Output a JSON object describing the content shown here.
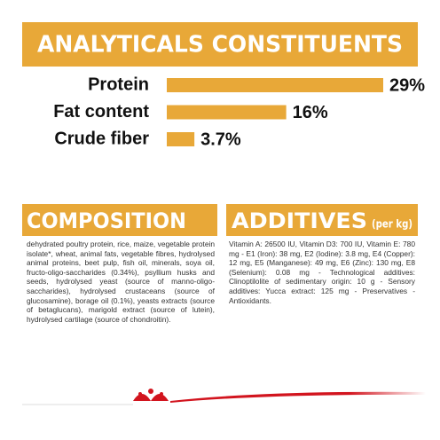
{
  "chart_data": {
    "type": "bar",
    "orientation": "horizontal",
    "title": "ANALYTICALS CONSTITUENTS",
    "categories": [
      "Protein",
      "Fat content",
      "Crude fiber"
    ],
    "values": [
      29,
      16,
      3.7
    ],
    "value_labels": [
      "29%",
      "16%",
      "3.7%"
    ],
    "color": "#e8a838"
  },
  "composition": {
    "title": "COMPOSITION",
    "text": "dehydrated poultry protein, rice, maize, vegetable protein isolate*, wheat, animal fats, vegetable fibres, hydrolysed animal proteins, beet pulp, fish oil, minerals, soya oil, fructo-oligo-saccharides (0.34%), psyllium husks and seeds, hydrolysed yeast (source of manno-oligo-saccharides), hydrolysed crustaceans (source of glucosamine), borage oil (0.1%), yeasts extracts (source of betaglucans), marigold extract (source of lutein), hydrolysed cartilage (source of chondroitin)."
  },
  "additives": {
    "title": "ADDITIVES",
    "unit": "(per kg)",
    "text": "Vitamin A: 26500 IU, Vitamin D3: 700 IU, Vitamin E: 780 mg - E1 (Iron): 38 mg, E2 (Iodine): 3.8 mg, E4 (Copper): 12 mg, E5 (Manganese): 49 mg, E6 (Zinc): 130 mg, E8 (Selenium): 0.08 mg - Technological additives: Clinoptilolite of sedimentary origin: 10 g - Sensory additives: Yucca extract: 125 mg - Preservatives - Antioxidants."
  }
}
